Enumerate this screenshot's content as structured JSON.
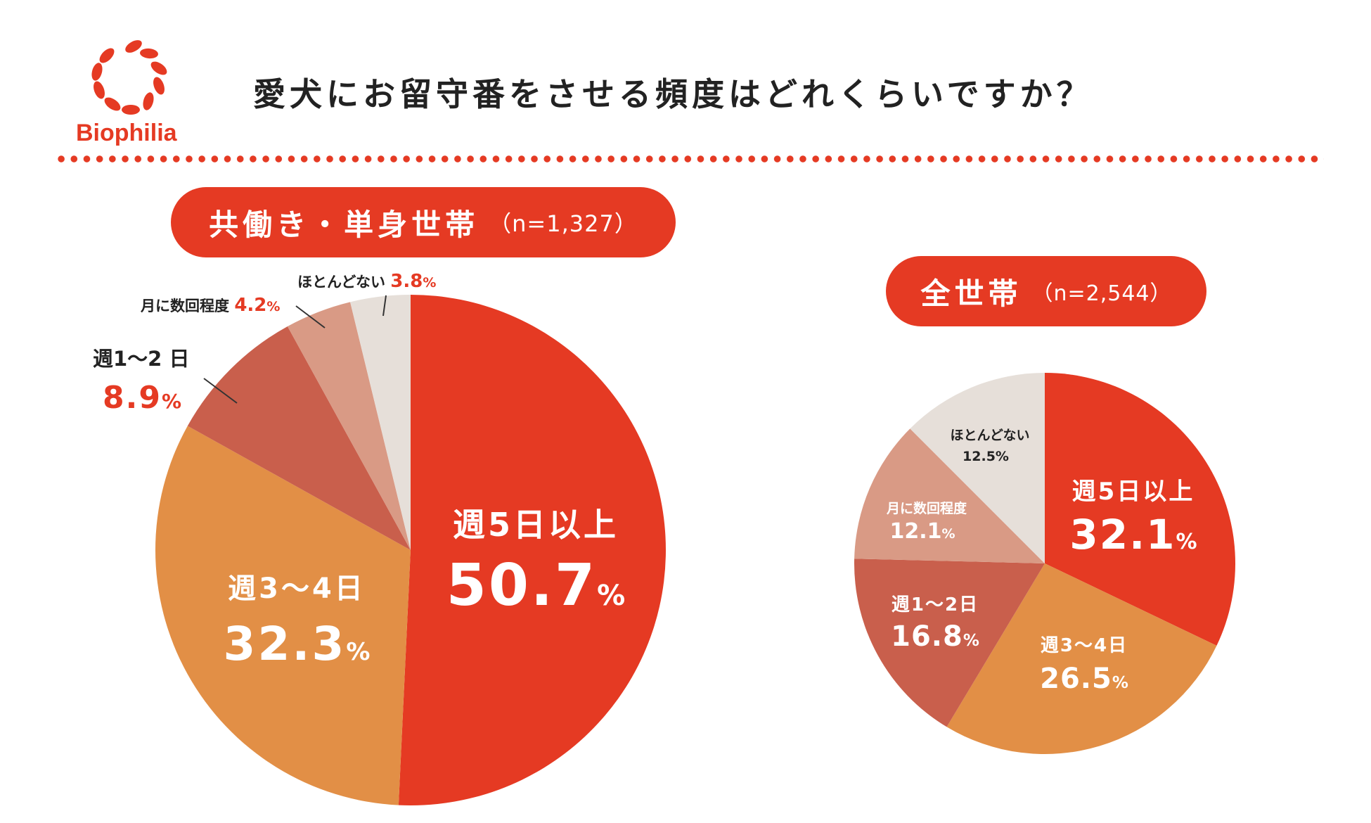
{
  "header": {
    "logo_text": "Biophilia",
    "title": "愛犬にお留守番をさせる頻度はどれくらいですか？"
  },
  "colors": {
    "accent": "#e53a23",
    "slices": [
      "#e53a23",
      "#e28f46",
      "#c95f4c",
      "#d99a85",
      "#e6dfd9"
    ],
    "text_dark": "#222222",
    "text_white": "#ffffff"
  },
  "chart_data": [
    {
      "type": "pie",
      "title": "共働き・単身世帯",
      "subtitle": "（n=1,327）",
      "group_name": "共働き・単身世帯",
      "n_label": "（n=1,327）",
      "unit": "%",
      "labels": [
        "週5日以上",
        "週3～4日",
        "週1～2 日",
        "月に数回程度",
        "ほとんどない"
      ],
      "values": [
        50.7,
        32.3,
        8.9,
        4.2,
        3.8
      ],
      "value_labels": [
        "50.7",
        "32.3",
        "8.9",
        "4.2",
        "3.8"
      ]
    },
    {
      "type": "pie",
      "title": "全世帯",
      "subtitle": "（n=2,544）",
      "group_name": "全世帯",
      "n_label": "（n=2,544）",
      "unit": "%",
      "labels": [
        "週5日以上",
        "週3～4日",
        "週1～2日",
        "月に数回程度",
        "ほとんどない"
      ],
      "values": [
        32.1,
        26.5,
        16.8,
        12.1,
        12.5
      ],
      "value_labels": [
        "32.1",
        "26.5",
        "16.8",
        "12.1",
        "12.5"
      ]
    }
  ]
}
